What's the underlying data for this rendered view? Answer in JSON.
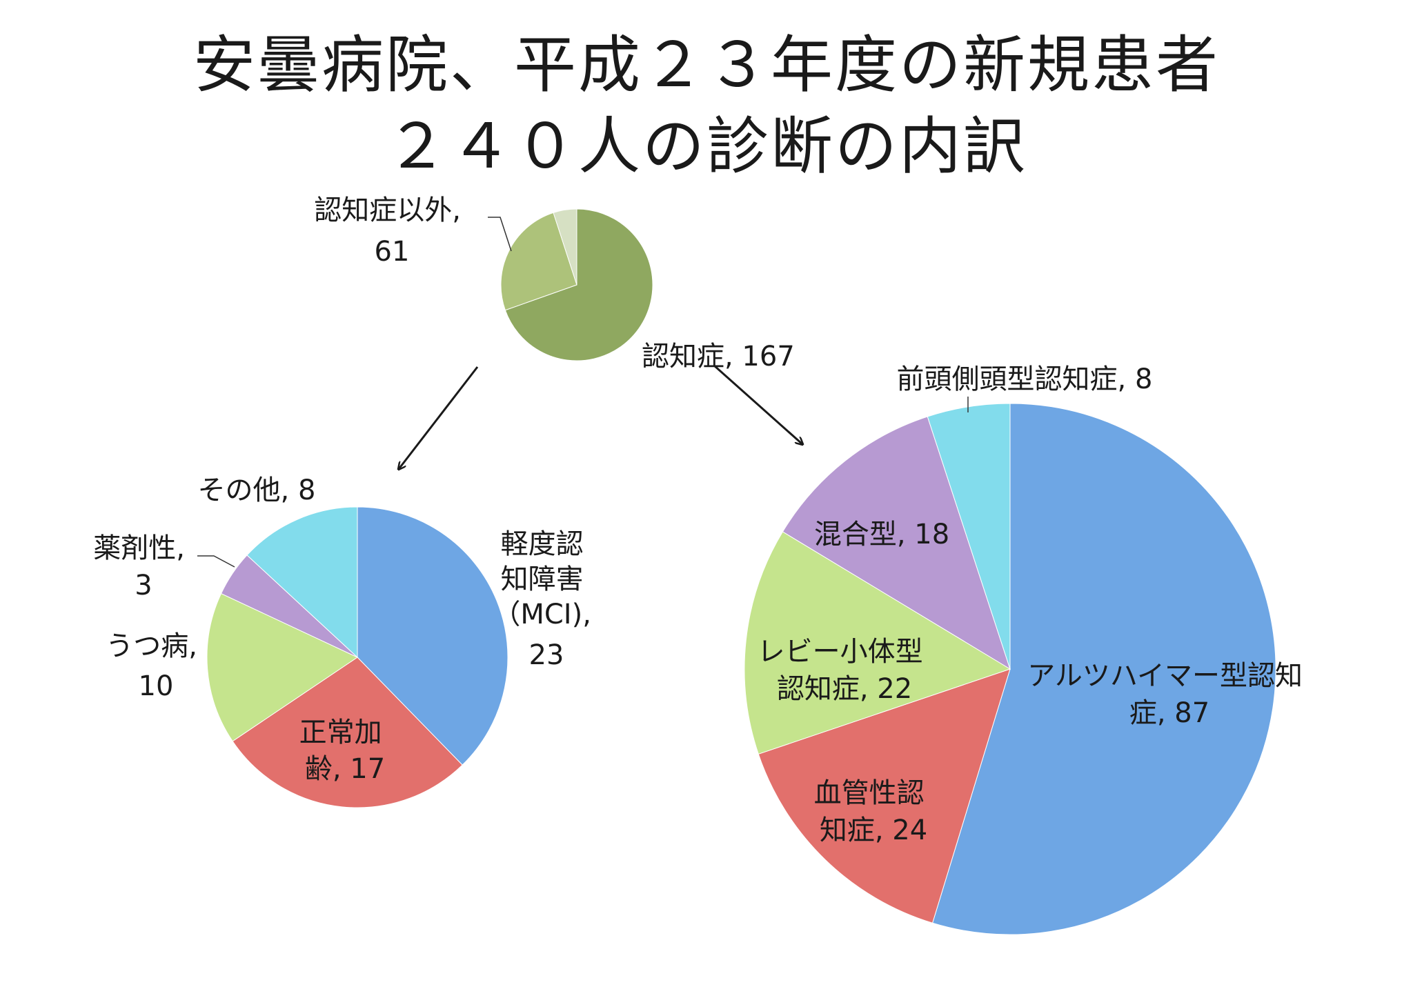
{
  "title": {
    "line1": "安曇病院、平成２３年度の新規患者",
    "line2": "２４０人の診断の内訳"
  },
  "chart_data": [
    {
      "type": "pie",
      "slices": [
        {
          "label": "認知症",
          "value": 167,
          "color": "#8fa860"
        },
        {
          "label": "認知症以外",
          "value": 61,
          "color": "#adc27a"
        },
        {
          "label": "",
          "value": 12,
          "color": "#d6e0c3"
        }
      ],
      "data_labels": [
        [
          "認知症, 167"
        ],
        [
          "認知症以外,",
          "61"
        ]
      ]
    },
    {
      "type": "pie",
      "slices": [
        {
          "label": "軽度認知障害（MCI)",
          "value": 23,
          "color": "#6ea6e4"
        },
        {
          "label": "正常加齢",
          "value": 17,
          "color": "#e2706c"
        },
        {
          "label": "うつ病",
          "value": 10,
          "color": "#c5e48d"
        },
        {
          "label": "薬剤性",
          "value": 3,
          "color": "#b79ad2"
        },
        {
          "label": "その他",
          "value": 8,
          "color": "#82dcec"
        }
      ],
      "data_labels": [
        [
          "軽度認",
          "知障害",
          "（MCI),",
          "23"
        ],
        [
          "正常加",
          "齢, 17"
        ],
        [
          "うつ病,",
          "10"
        ],
        [
          "薬剤性,",
          "3"
        ],
        [
          "その他, 8"
        ]
      ]
    },
    {
      "type": "pie",
      "slices": [
        {
          "label": "アルツハイマー型認知症",
          "value": 87,
          "color": "#6ea6e4"
        },
        {
          "label": "血管性認知症",
          "value": 24,
          "color": "#e2706c"
        },
        {
          "label": "レビー小体型認知症",
          "value": 22,
          "color": "#c5e48d"
        },
        {
          "label": "混合型",
          "value": 18,
          "color": "#b79ad2"
        },
        {
          "label": "前頭側頭型認知症",
          "value": 8,
          "color": "#82dcec"
        }
      ],
      "data_labels": [
        [
          "アルツハイマー型認知",
          "症, 87"
        ],
        [
          "血管性認",
          "知症, 24"
        ],
        [
          "レビー小体型",
          "認知症, 22"
        ],
        [
          "混合型, 18"
        ],
        [
          "前頭側頭型認知症, 8"
        ]
      ]
    }
  ]
}
